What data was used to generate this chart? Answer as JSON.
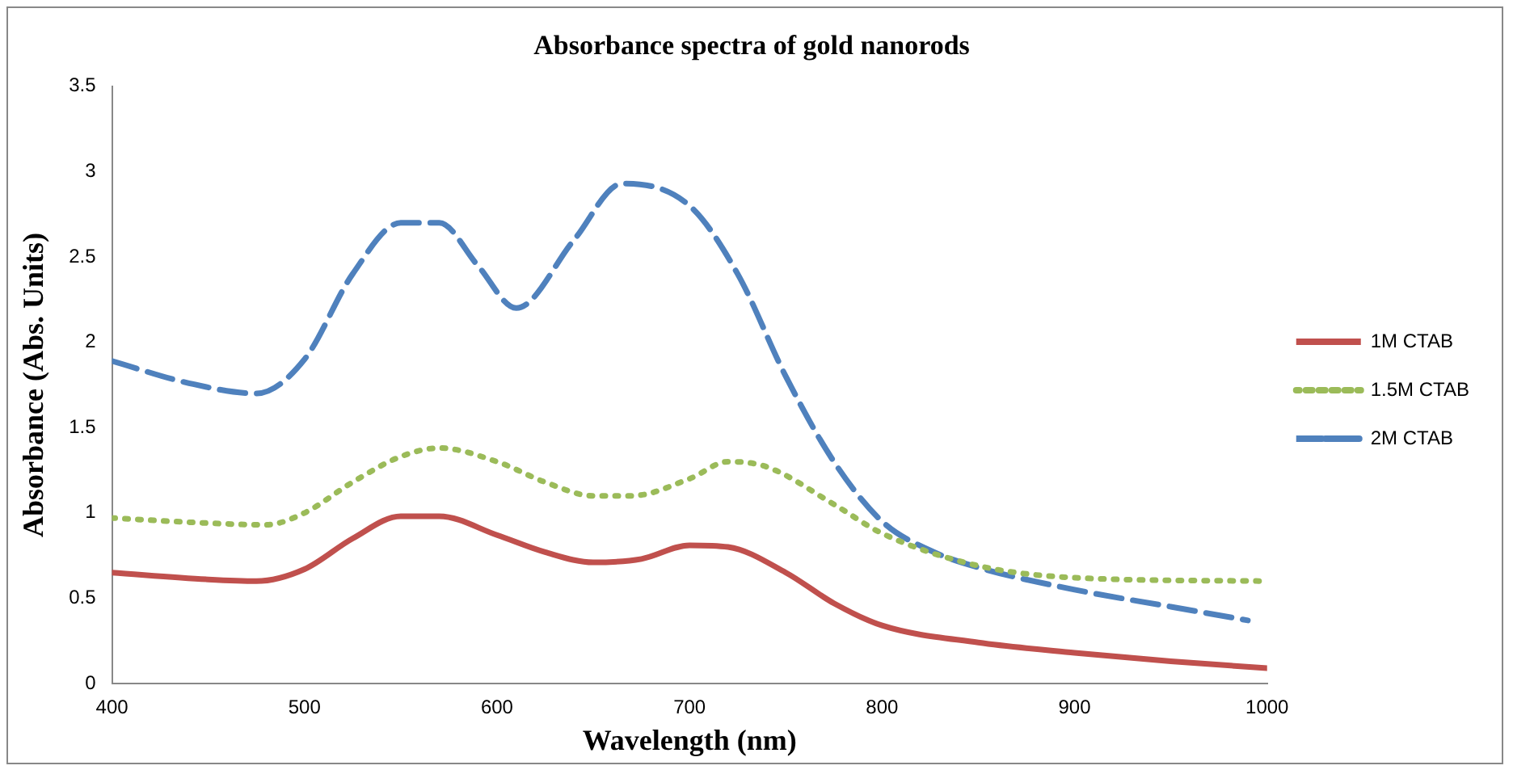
{
  "chart_data": {
    "type": "line",
    "title": "Absorbance spectra of gold nanorods",
    "xlabel": "Wavelength (nm)",
    "ylabel": "Absorbance (Abs. Units)",
    "xlim": [
      400,
      1000
    ],
    "xticks": [
      400,
      500,
      600,
      700,
      800,
      900,
      1000
    ],
    "ylim": [
      0,
      3.5
    ],
    "yticks": [
      0,
      0.5,
      1,
      1.5,
      2,
      2.5,
      3,
      3.5
    ],
    "grid": false,
    "legend": "right",
    "marker": "none",
    "series": [
      {
        "name": "1M CTAB",
        "color": "#c0504d",
        "line_style": "solid",
        "x": [
          400,
          450,
          475,
          500,
          525,
          550,
          570,
          600,
          625,
          650,
          675,
          700,
          720,
          750,
          775,
          800,
          850,
          900,
          950,
          1000
        ],
        "values": [
          0.65,
          0.61,
          0.6,
          0.67,
          0.85,
          0.98,
          0.98,
          0.87,
          0.77,
          0.71,
          0.73,
          0.81,
          0.8,
          0.65,
          0.47,
          0.34,
          0.24,
          0.18,
          0.13,
          0.09
        ]
      },
      {
        "name": "1.5M CTAB",
        "color": "#9bbb59",
        "line_style": "dotted",
        "x": [
          400,
          450,
          480,
          500,
          525,
          550,
          570,
          600,
          625,
          650,
          670,
          700,
          720,
          740,
          775,
          800,
          850,
          900,
          1000
        ],
        "values": [
          0.97,
          0.94,
          0.93,
          1.0,
          1.18,
          1.33,
          1.38,
          1.3,
          1.18,
          1.1,
          1.1,
          1.2,
          1.3,
          1.27,
          1.05,
          0.88,
          0.69,
          0.62,
          0.6
        ]
      },
      {
        "name": "2M CTAB",
        "color": "#4f81bd",
        "line_style": "dashed",
        "x": [
          400,
          440,
          475,
          500,
          525,
          550,
          570,
          590,
          610,
          640,
          665,
          700,
          725,
          750,
          775,
          800,
          825,
          850,
          900,
          950,
          990
        ],
        "values": [
          1.89,
          1.76,
          1.7,
          1.9,
          2.4,
          2.7,
          2.7,
          2.45,
          2.2,
          2.6,
          2.93,
          2.8,
          2.4,
          1.8,
          1.3,
          0.95,
          0.78,
          0.68,
          0.55,
          0.45,
          0.37
        ]
      }
    ]
  }
}
